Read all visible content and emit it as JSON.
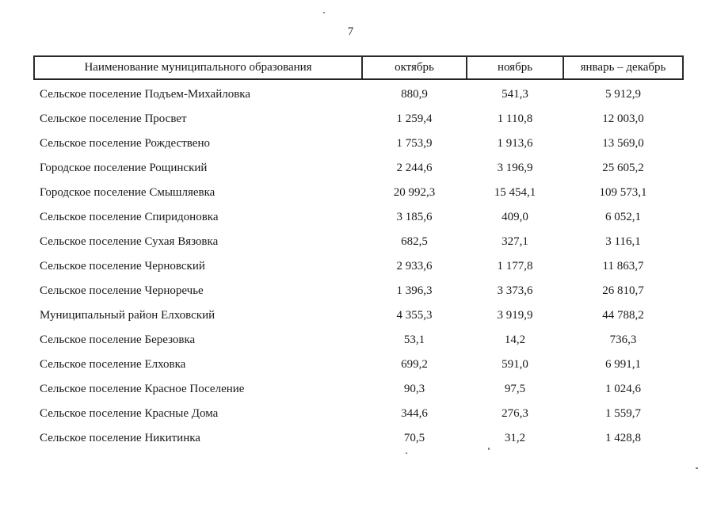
{
  "page": {
    "number": "7"
  },
  "table": {
    "headers": [
      "Наименование муниципального образования",
      "октябрь",
      "ноябрь",
      "январь – декабрь"
    ],
    "rows": [
      {
        "name": "Сельское поселение Подъем-Михайловка",
        "october": "880,9",
        "november": "541,3",
        "jan_dec": "5 912,9"
      },
      {
        "name": "Сельское поселение Просвет",
        "october": "1 259,4",
        "november": "1 110,8",
        "jan_dec": "12 003,0"
      },
      {
        "name": "Сельское поселение Рождествено",
        "october": "1 753,9",
        "november": "1 913,6",
        "jan_dec": "13 569,0"
      },
      {
        "name": "Городское поселение Рощинский",
        "october": "2 244,6",
        "november": "3 196,9",
        "jan_dec": "25 605,2"
      },
      {
        "name": "Городское поселение Смышляевка",
        "october": "20 992,3",
        "november": "15 454,1",
        "jan_dec": "109 573,1"
      },
      {
        "name": "Сельское поселение Спиридоновка",
        "october": "3 185,6",
        "november": "409,0",
        "jan_dec": "6 052,1"
      },
      {
        "name": "Сельское поселение Сухая Вязовка",
        "october": "682,5",
        "november": "327,1",
        "jan_dec": "3 116,1"
      },
      {
        "name": "Сельское поселение Черновский",
        "october": "2 933,6",
        "november": "1 177,8",
        "jan_dec": "11 863,7"
      },
      {
        "name": "Сельское поселение Черноречье",
        "october": "1 396,3",
        "november": "3 373,6",
        "jan_dec": "26 810,7"
      },
      {
        "name": "Муниципальный район Елховский",
        "october": "4 355,3",
        "november": "3 919,9",
        "jan_dec": "44 788,2"
      },
      {
        "name": "Сельское поселение Березовка",
        "october": "53,1",
        "november": "14,2",
        "jan_dec": "736,3"
      },
      {
        "name": "Сельское поселение Елховка",
        "october": "699,2",
        "november": "591,0",
        "jan_dec": "6 991,1"
      },
      {
        "name": "Сельское поселение Красное Поселение",
        "october": "90,3",
        "november": "97,5",
        "jan_dec": "1 024,6"
      },
      {
        "name": "Сельское поселение Красные Дома",
        "october": "344,6",
        "november": "276,3",
        "jan_dec": "1 559,7"
      },
      {
        "name": "Сельское поселение Никитинка",
        "october": "70,5",
        "november": "31,2",
        "jan_dec": "1 428,8"
      }
    ]
  }
}
